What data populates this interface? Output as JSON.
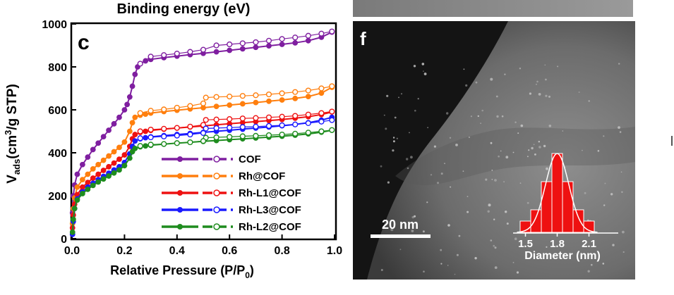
{
  "top_strip": {
    "text": "Binding energy (eV)"
  },
  "panel_c": {
    "letter": "c",
    "chart_data": {
      "type": "scatter",
      "xlabel": "Relative Pressure (P/P",
      "xlabel_sub": "0",
      "xlabel_end": ")",
      "ylabel_parts": [
        "V",
        "ads",
        "(cm",
        "3",
        "/g STP)"
      ],
      "xlim": [
        0,
        1.0
      ],
      "ylim": [
        0,
        1000
      ],
      "xticks": [
        "0.0",
        "0.2",
        "0.4",
        "0.6",
        "0.8",
        "1.0"
      ],
      "yticks": [
        "0",
        "200",
        "400",
        "600",
        "800",
        "1000"
      ],
      "legend_position": "bottom-right",
      "series": [
        {
          "name": "COF",
          "color": "#7f1fa0",
          "adsorption": {
            "x": [
              0.002,
              0.005,
              0.01,
              0.02,
              0.04,
              0.06,
              0.08,
              0.1,
              0.12,
              0.14,
              0.16,
              0.18,
              0.2,
              0.21,
              0.22,
              0.23,
              0.24,
              0.25,
              0.26,
              0.28,
              0.3,
              0.35,
              0.4,
              0.45,
              0.5,
              0.55,
              0.6,
              0.65,
              0.7,
              0.75,
              0.8,
              0.85,
              0.9,
              0.95,
              0.99
            ],
            "y": [
              120,
              200,
              250,
              300,
              345,
              380,
              415,
              445,
              475,
              505,
              535,
              565,
              600,
              625,
              660,
              710,
              765,
              800,
              815,
              828,
              835,
              843,
              850,
              857,
              863,
              870,
              877,
              884,
              891,
              898,
              905,
              912,
              922,
              938,
              962
            ]
          },
          "desorption": {
            "x": [
              0.99,
              0.95,
              0.9,
              0.85,
              0.8,
              0.75,
              0.7,
              0.65,
              0.6,
              0.55,
              0.5,
              0.45,
              0.4,
              0.35,
              0.3,
              0.26
            ],
            "y": [
              965,
              955,
              945,
              937,
              930,
              922,
              915,
              910,
              905,
              900,
              880,
              870,
              862,
              855,
              848,
              815
            ]
          }
        },
        {
          "name": "Rh@COF",
          "color": "#ff7f0e",
          "adsorption": {
            "x": [
              0.002,
              0.005,
              0.01,
              0.02,
              0.04,
              0.06,
              0.08,
              0.1,
              0.12,
              0.14,
              0.16,
              0.18,
              0.2,
              0.22,
              0.23,
              0.24,
              0.26,
              0.28,
              0.3,
              0.35,
              0.4,
              0.45,
              0.5,
              0.55,
              0.6,
              0.65,
              0.7,
              0.75,
              0.8,
              0.85,
              0.9,
              0.95,
              0.99
            ],
            "y": [
              70,
              140,
              190,
              240,
              275,
              300,
              325,
              345,
              365,
              385,
              405,
              425,
              450,
              500,
              540,
              565,
              575,
              580,
              585,
              592,
              598,
              604,
              610,
              616,
              622,
              628,
              634,
              640,
              646,
              653,
              662,
              678,
              705
            ]
          },
          "desorption": {
            "x": [
              0.99,
              0.95,
              0.9,
              0.85,
              0.8,
              0.75,
              0.7,
              0.65,
              0.6,
              0.55,
              0.51,
              0.5,
              0.45,
              0.4,
              0.35,
              0.3,
              0.26
            ],
            "y": [
              710,
              700,
              690,
              683,
              677,
              672,
              668,
              665,
              662,
              660,
              657,
              630,
              618,
              610,
              602,
              596,
              585
            ]
          }
        },
        {
          "name": "Rh-L1@COF",
          "color": "#ee1111",
          "adsorption": {
            "x": [
              0.002,
              0.005,
              0.01,
              0.02,
              0.04,
              0.06,
              0.08,
              0.1,
              0.12,
              0.14,
              0.16,
              0.18,
              0.2,
              0.22,
              0.23,
              0.24,
              0.26,
              0.28,
              0.3,
              0.35,
              0.4,
              0.45,
              0.5,
              0.55,
              0.6,
              0.65,
              0.7,
              0.75,
              0.8,
              0.85,
              0.9,
              0.95,
              0.99
            ],
            "y": [
              50,
              110,
              160,
              205,
              240,
              262,
              282,
              300,
              318,
              335,
              352,
              370,
              390,
              430,
              465,
              485,
              495,
              500,
              504,
              510,
              515,
              520,
              525,
              530,
              535,
              540,
              545,
              550,
              555,
              561,
              568,
              578,
              590
            ]
          },
          "desorption": {
            "x": [
              0.99,
              0.95,
              0.9,
              0.85,
              0.8,
              0.75,
              0.7,
              0.65,
              0.6,
              0.55,
              0.51,
              0.5,
              0.45,
              0.4,
              0.35,
              0.3,
              0.26
            ],
            "y": [
              592,
              585,
              578,
              572,
              568,
              565,
              562,
              560,
              557,
              555,
              553,
              530,
              522,
              516,
              512,
              508,
              500
            ]
          }
        },
        {
          "name": "Rh-L3@COF",
          "color": "#1a1aff",
          "adsorption": {
            "x": [
              0.002,
              0.005,
              0.01,
              0.02,
              0.04,
              0.06,
              0.08,
              0.1,
              0.12,
              0.14,
              0.16,
              0.18,
              0.2,
              0.22,
              0.23,
              0.24,
              0.26,
              0.28,
              0.3,
              0.35,
              0.4,
              0.45,
              0.5,
              0.55,
              0.6,
              0.65,
              0.7,
              0.75,
              0.8,
              0.85,
              0.9,
              0.95,
              0.99
            ],
            "y": [
              20,
              80,
              140,
              185,
              218,
              240,
              258,
              275,
              290,
              305,
              320,
              335,
              355,
              395,
              430,
              455,
              465,
              470,
              474,
              480,
              485,
              490,
              495,
              500,
              505,
              510,
              515,
              520,
              526,
              532,
              540,
              552,
              565
            ]
          },
          "desorption": {
            "x": [
              0.99,
              0.95,
              0.9,
              0.85,
              0.8,
              0.75,
              0.7,
              0.65,
              0.6,
              0.55,
              0.51,
              0.5,
              0.45,
              0.4,
              0.35,
              0.3,
              0.26
            ],
            "y": [
              552,
              545,
              538,
              532,
              528,
              525,
              522,
              520,
              517,
              515,
              513,
              492,
              485,
              480,
              476,
              472,
              468
            ]
          }
        },
        {
          "name": "Rh-L2@COF",
          "color": "#1e8c1e",
          "adsorption": {
            "x": [
              0.002,
              0.005,
              0.01,
              0.02,
              0.04,
              0.06,
              0.08,
              0.1,
              0.12,
              0.14,
              0.16,
              0.18,
              0.2,
              0.22,
              0.23,
              0.24,
              0.26,
              0.28,
              0.3,
              0.35,
              0.4,
              0.45,
              0.5,
              0.55,
              0.6,
              0.65,
              0.7,
              0.75,
              0.8,
              0.85,
              0.9,
              0.95,
              0.99
            ],
            "y": [
              30,
              90,
              140,
              180,
              210,
              230,
              248,
              264,
              278,
              292,
              306,
              320,
              340,
              375,
              405,
              420,
              428,
              432,
              435,
              440,
              445,
              449,
              453,
              457,
              461,
              465,
              469,
              473,
              477,
              482,
              488,
              496,
              505
            ]
          },
          "desorption": {
            "x": [
              0.99,
              0.95,
              0.9,
              0.85,
              0.8,
              0.75,
              0.7,
              0.65,
              0.6,
              0.55,
              0.51,
              0.5,
              0.45,
              0.4,
              0.35,
              0.3,
              0.26
            ],
            "y": [
              506,
              500,
              494,
              489,
              485,
              482,
              479,
              477,
              474,
              472,
              470,
              455,
              449,
              445,
              441,
              438,
              432
            ]
          }
        }
      ]
    }
  },
  "panel_f": {
    "letter": "f",
    "scalebar_label": "20 nm",
    "histogram": {
      "type": "bar",
      "xlabel": "Diameter (nm)",
      "xticks": [
        "1.5",
        "1.8",
        "2.1"
      ],
      "bar_color": "#ee1111",
      "fit_color": "#ffffff",
      "bins": [
        1.5,
        1.6,
        1.7,
        1.8,
        1.9,
        2.0,
        2.1
      ],
      "values": [
        2,
        4,
        9,
        14,
        9,
        4,
        2
      ]
    }
  }
}
